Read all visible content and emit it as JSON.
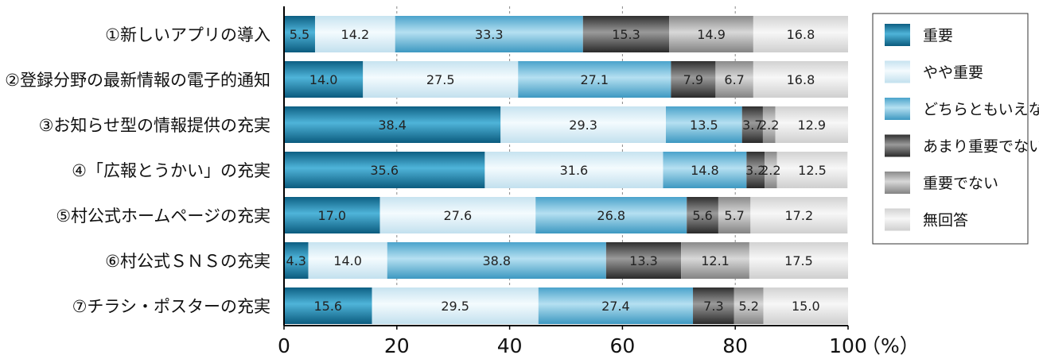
{
  "chart_data": {
    "type": "bar",
    "orientation": "horizontal",
    "stacked": true,
    "categories": [
      "①新しいアプリの導入",
      "②登録分野の最新情報の電子的通知",
      "③お知らせ型の情報提供の充実",
      "④「広報とうかい」の充実",
      "⑤村公式ホームページの充実",
      "⑥村公式ＳＮＳの充実",
      "⑦チラシ・ポスターの充実"
    ],
    "series": [
      {
        "name": "重要",
        "values": [
          5.5,
          14.0,
          38.4,
          35.6,
          17.0,
          4.3,
          15.6
        ]
      },
      {
        "name": "やや重要",
        "values": [
          14.2,
          27.5,
          29.3,
          31.6,
          27.6,
          14.0,
          29.5
        ]
      },
      {
        "name": "どちらともいえない",
        "values": [
          33.3,
          27.1,
          13.5,
          14.8,
          26.8,
          38.8,
          27.4
        ]
      },
      {
        "name": "あまり重要でない",
        "values": [
          15.3,
          7.9,
          3.7,
          3.2,
          5.6,
          13.3,
          7.3
        ]
      },
      {
        "name": "重要でない",
        "values": [
          14.9,
          6.7,
          2.2,
          2.2,
          5.7,
          12.1,
          5.2
        ]
      },
      {
        "name": "無回答",
        "values": [
          16.8,
          16.8,
          12.9,
          12.5,
          17.2,
          17.5,
          15.0
        ]
      }
    ],
    "value_labels": [
      [
        "5.5",
        "14.2",
        "33.3",
        "15.3",
        "14.9",
        "16.8"
      ],
      [
        "14.0",
        "27.5",
        "27.1",
        "7.9",
        "6.7",
        "16.8"
      ],
      [
        "38.4",
        "29.3",
        "13.5",
        "3.7",
        "2.2",
        "12.9"
      ],
      [
        "35.6",
        "31.6",
        "14.8",
        "3.2",
        "2.2",
        "12.5"
      ],
      [
        "17.0",
        "27.6",
        "26.8",
        "5.6",
        "5.7",
        "17.2"
      ],
      [
        "4.3",
        "14.0",
        "38.8",
        "13.3",
        "12.1",
        "17.5"
      ],
      [
        "15.6",
        "29.5",
        "27.4",
        "7.3",
        "5.2",
        "15.0"
      ]
    ],
    "xticks": [
      "0",
      "20",
      "40",
      "60",
      "80",
      "100"
    ],
    "xtick_values": [
      0,
      20,
      40,
      60,
      80,
      100
    ],
    "xunit": "（%）",
    "xlim": [
      0,
      100
    ],
    "grid": "vertical dashed",
    "legend": "right",
    "colors": {
      "重要": "#1a7fa8",
      "やや重要": "#d4eaf4",
      "どちらともいえない": "#6cb8d8",
      "あまり重要でない": "#555555",
      "重要でない": "#a6a6a6",
      "無回答": "#e2e2e2"
    }
  }
}
